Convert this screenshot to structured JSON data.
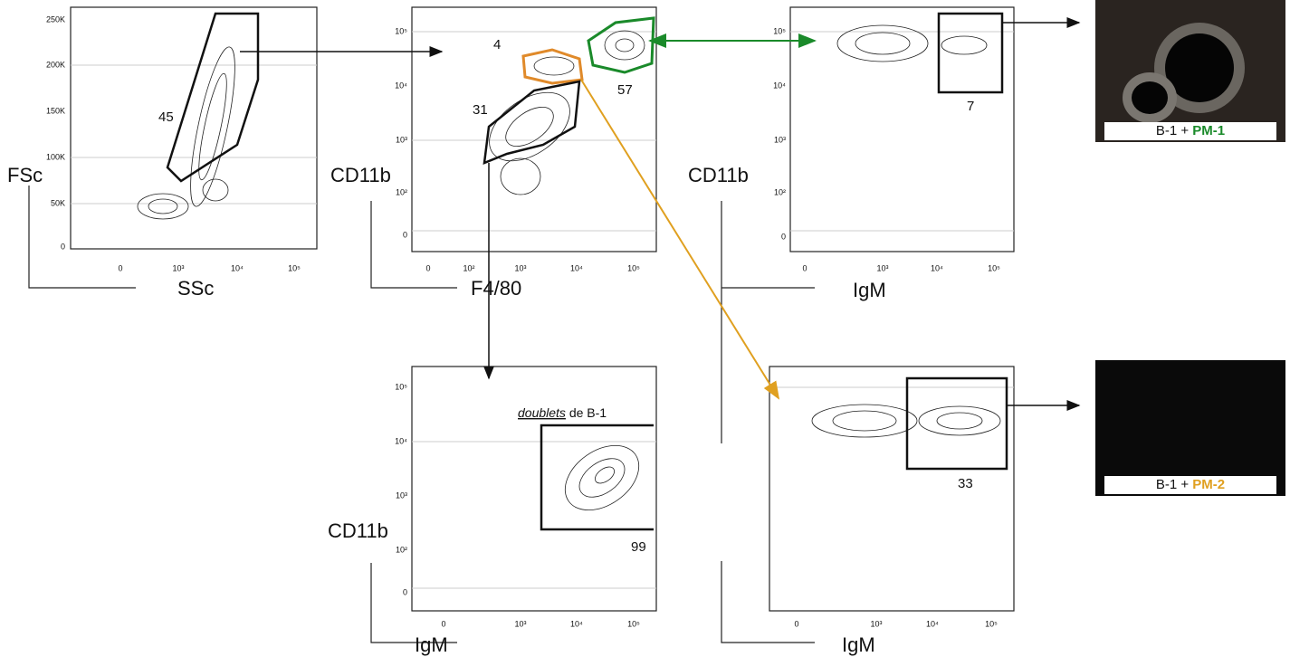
{
  "panels": [
    {
      "y_label": "FSc",
      "x_label": "SSc",
      "yticks": [
        "250K",
        "200K",
        "150K",
        "100K",
        "50K",
        "0"
      ],
      "xticks": [
        "0",
        "10³",
        "10⁴",
        "10⁵"
      ],
      "gates": [
        "45"
      ]
    },
    {
      "y_label": "CD11b",
      "x_label": "F4/80",
      "yticks": [
        "10⁵",
        "10⁴",
        "10³",
        "10²",
        "0"
      ],
      "xticks": [
        "0",
        "10²",
        "10³",
        "10⁴",
        "10⁵"
      ],
      "gates": [
        "4",
        "57",
        "31"
      ]
    },
    {
      "y_label": "CD11b",
      "x_label": "IgM",
      "yticks": [
        "10⁵",
        "10⁴",
        "10³",
        "10²",
        "0"
      ],
      "xticks": [
        "0",
        "10³",
        "10⁴",
        "10⁵"
      ],
      "gates": [
        "7"
      ]
    },
    {
      "y_label": "CD11b",
      "x_label": "IgM",
      "yticks": [
        "10⁵",
        "10⁴",
        "10³",
        "10²",
        "0"
      ],
      "xticks": [
        "0",
        "10³",
        "10⁴",
        "10⁵"
      ],
      "gates": [
        "99"
      ],
      "annotation": "doublets",
      "annotation_suffix": "de B-1"
    },
    {
      "x_label": "IgM",
      "xticks": [
        "0",
        "10³",
        "10⁴",
        "10⁵"
      ],
      "gates": [
        "33"
      ]
    }
  ],
  "images": [
    {
      "caption": "B-1 + ",
      "highlight": "PM-1"
    },
    {
      "caption": "B-1 + ",
      "highlight": "PM-2"
    }
  ]
}
